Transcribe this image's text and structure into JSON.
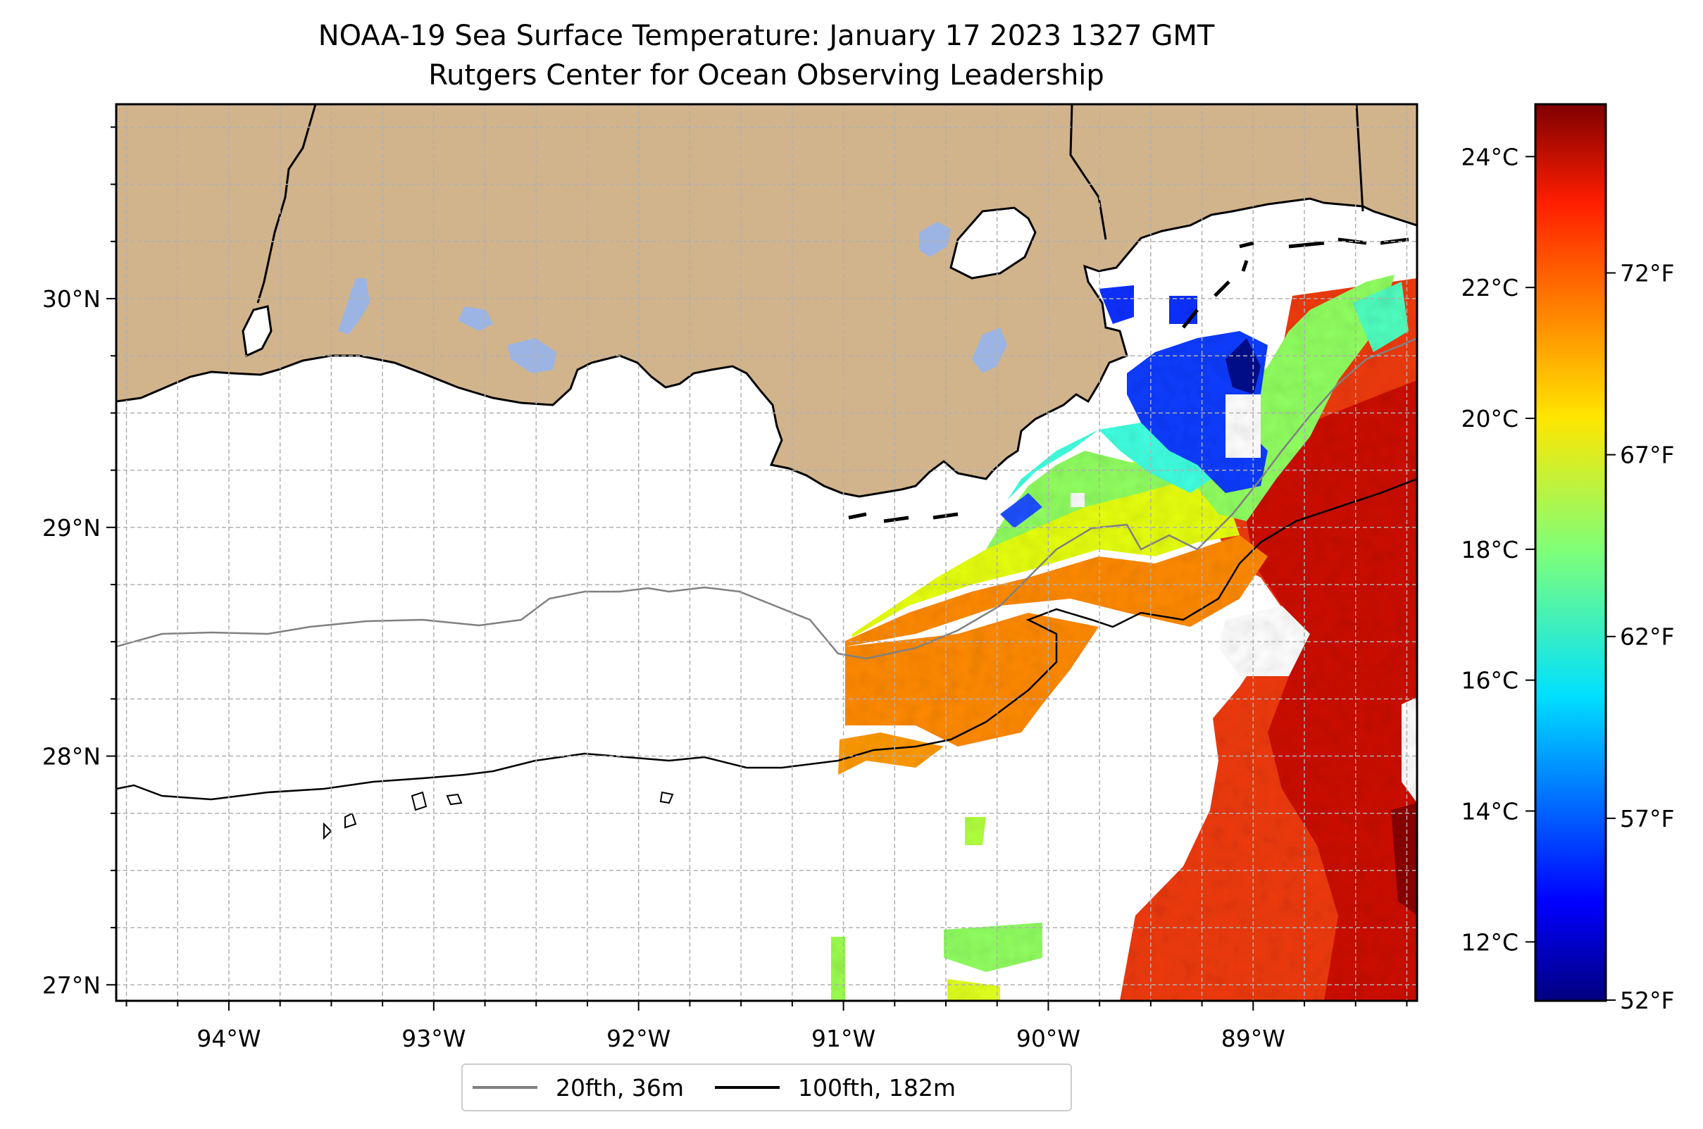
{
  "title_line1": "NOAA-19 Sea Surface Temperature: January 17 2023 1327 GMT",
  "title_line2": "Rutgers Center for Ocean Observing Leadership",
  "map": {
    "lon_range": [
      -94.55,
      -88.2
    ],
    "lat_range": [
      26.93,
      30.85
    ],
    "lon_ticks": [
      {
        "value": -94,
        "label": "94°W"
      },
      {
        "value": -93,
        "label": "93°W"
      },
      {
        "value": -92,
        "label": "92°W"
      },
      {
        "value": -91,
        "label": "91°W"
      },
      {
        "value": -90,
        "label": "90°W"
      },
      {
        "value": -89,
        "label": "89°W"
      }
    ],
    "lat_ticks": [
      {
        "value": 27,
        "label": "27°N"
      },
      {
        "value": 28,
        "label": "28°N"
      },
      {
        "value": 29,
        "label": "29°N"
      },
      {
        "value": 30,
        "label": "30°N"
      }
    ],
    "grid": true,
    "colors": {
      "land": "#d2b48c",
      "water_body": "#9bb4e3",
      "coast": "#000000",
      "isobath_20": "#808080",
      "isobath_100": "#000000"
    }
  },
  "legend": {
    "placement": "bottom-center",
    "items": [
      {
        "label": "20fth, 36m",
        "color": "#808080"
      },
      {
        "label": "100fth, 182m",
        "color": "#000000"
      }
    ]
  },
  "colorbar": {
    "colormap": "jet",
    "range_c": [
      11.1,
      24.8
    ],
    "celsius_ticks": [
      {
        "value": 12,
        "label": "12°C"
      },
      {
        "value": 14,
        "label": "14°C"
      },
      {
        "value": 16,
        "label": "16°C"
      },
      {
        "value": 18,
        "label": "18°C"
      },
      {
        "value": 20,
        "label": "20°C"
      },
      {
        "value": 22,
        "label": "22°C"
      },
      {
        "value": 24,
        "label": "24°C"
      }
    ],
    "fahrenheit_ticks": [
      {
        "value": 52,
        "label": "52°F"
      },
      {
        "value": 57,
        "label": "57°F"
      },
      {
        "value": 62,
        "label": "62°F"
      },
      {
        "value": 67,
        "label": "67°F"
      },
      {
        "value": 72,
        "label": "72°F"
      }
    ]
  }
}
